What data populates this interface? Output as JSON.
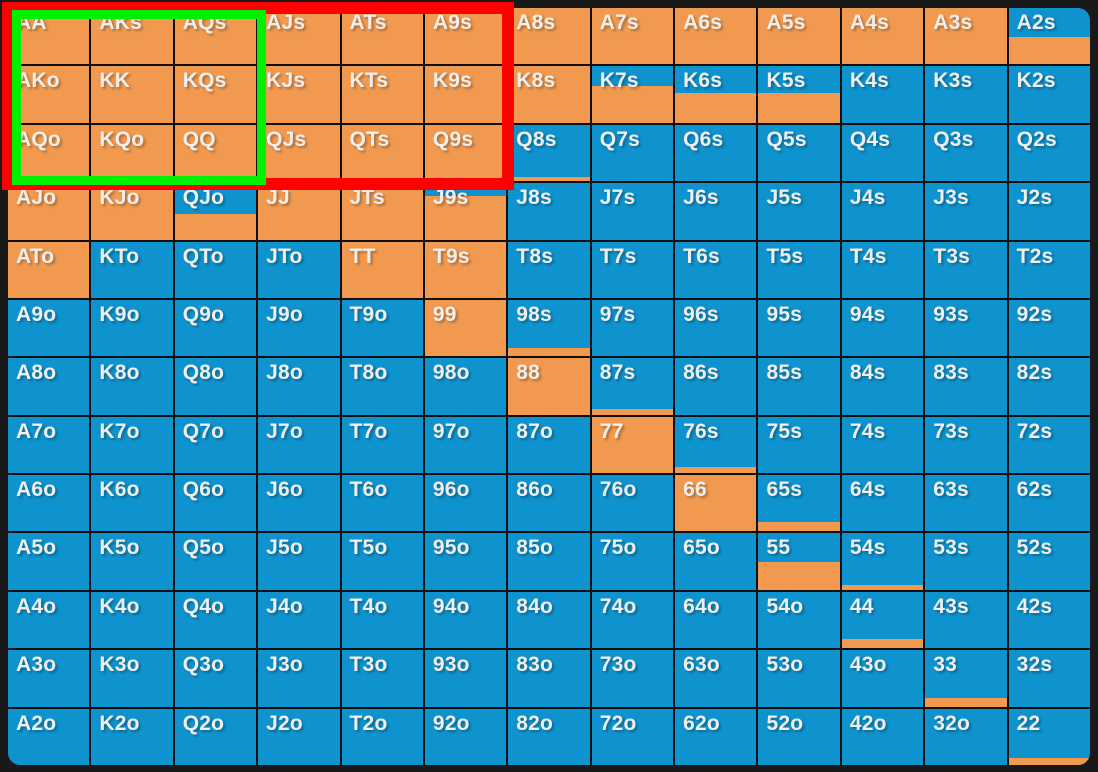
{
  "page": {
    "background_color": "#191919",
    "grid_gap_color": "#0f0f0f"
  },
  "grid": {
    "kind": "poker-hand-range-matrix-13x13",
    "raise_color": "#f0994f",
    "fold_color": "#0e93ce",
    "text_color": "#f1efed",
    "rows": [
      [
        [
          "AA",
          1
        ],
        [
          "AKs",
          1
        ],
        [
          "AQs",
          1
        ],
        [
          "AJs",
          1
        ],
        [
          "ATs",
          1
        ],
        [
          "A9s",
          1
        ],
        [
          "A8s",
          1
        ],
        [
          "A7s",
          1
        ],
        [
          "A6s",
          1
        ],
        [
          "A5s",
          1
        ],
        [
          "A4s",
          1
        ],
        [
          "A3s",
          1
        ],
        [
          "A2s",
          0.48
        ]
      ],
      [
        [
          "AKo",
          1
        ],
        [
          "KK",
          1
        ],
        [
          "KQs",
          1
        ],
        [
          "KJs",
          1
        ],
        [
          "KTs",
          1
        ],
        [
          "K9s",
          1
        ],
        [
          "K8s",
          1
        ],
        [
          "K7s",
          0.65
        ],
        [
          "K6s",
          0.52
        ],
        [
          "K5s",
          0.52
        ],
        [
          "K4s",
          0
        ],
        [
          "K3s",
          0
        ],
        [
          "K2s",
          0
        ]
      ],
      [
        [
          "AQo",
          1
        ],
        [
          "KQo",
          1
        ],
        [
          "QQ",
          1
        ],
        [
          "QJs",
          1
        ],
        [
          "QTs",
          1
        ],
        [
          "Q9s",
          1
        ],
        [
          "Q8s",
          0.08
        ],
        [
          "Q7s",
          0
        ],
        [
          "Q6s",
          0
        ],
        [
          "Q5s",
          0
        ],
        [
          "Q4s",
          0
        ],
        [
          "Q3s",
          0
        ],
        [
          "Q2s",
          0
        ]
      ],
      [
        [
          "AJo",
          1
        ],
        [
          "KJo",
          1
        ],
        [
          "QJo",
          0.45
        ],
        [
          "JJ",
          1
        ],
        [
          "JTs",
          1
        ],
        [
          "J9s",
          0.78
        ],
        [
          "J8s",
          0
        ],
        [
          "J7s",
          0
        ],
        [
          "J6s",
          0
        ],
        [
          "J5s",
          0
        ],
        [
          "J4s",
          0
        ],
        [
          "J3s",
          0
        ],
        [
          "J2s",
          0
        ]
      ],
      [
        [
          "ATo",
          1
        ],
        [
          "KTo",
          0
        ],
        [
          "QTo",
          0
        ],
        [
          "JTo",
          0
        ],
        [
          "TT",
          1
        ],
        [
          "T9s",
          1
        ],
        [
          "T8s",
          0
        ],
        [
          "T7s",
          0
        ],
        [
          "T6s",
          0
        ],
        [
          "T5s",
          0
        ],
        [
          "T4s",
          0
        ],
        [
          "T3s",
          0
        ],
        [
          "T2s",
          0
        ]
      ],
      [
        [
          "A9o",
          0
        ],
        [
          "K9o",
          0
        ],
        [
          "Q9o",
          0
        ],
        [
          "J9o",
          0
        ],
        [
          "T9o",
          0
        ],
        [
          "99",
          1
        ],
        [
          "98s",
          0.14
        ],
        [
          "97s",
          0
        ],
        [
          "96s",
          0
        ],
        [
          "95s",
          0
        ],
        [
          "94s",
          0
        ],
        [
          "93s",
          0
        ],
        [
          "92s",
          0
        ]
      ],
      [
        [
          "A8o",
          0
        ],
        [
          "K8o",
          0
        ],
        [
          "Q8o",
          0
        ],
        [
          "J8o",
          0
        ],
        [
          "T8o",
          0
        ],
        [
          "98o",
          0
        ],
        [
          "88",
          1
        ],
        [
          "87s",
          0.1
        ],
        [
          "86s",
          0
        ],
        [
          "85s",
          0
        ],
        [
          "84s",
          0
        ],
        [
          "83s",
          0
        ],
        [
          "82s",
          0
        ]
      ],
      [
        [
          "A7o",
          0
        ],
        [
          "K7o",
          0
        ],
        [
          "Q7o",
          0
        ],
        [
          "J7o",
          0
        ],
        [
          "T7o",
          0
        ],
        [
          "97o",
          0
        ],
        [
          "87o",
          0
        ],
        [
          "77",
          1
        ],
        [
          "76s",
          0.1
        ],
        [
          "75s",
          0
        ],
        [
          "74s",
          0
        ],
        [
          "73s",
          0
        ],
        [
          "72s",
          0
        ]
      ],
      [
        [
          "A6o",
          0
        ],
        [
          "K6o",
          0
        ],
        [
          "Q6o",
          0
        ],
        [
          "J6o",
          0
        ],
        [
          "T6o",
          0
        ],
        [
          "96o",
          0
        ],
        [
          "86o",
          0
        ],
        [
          "76o",
          0
        ],
        [
          "66",
          1
        ],
        [
          "65s",
          0.16
        ],
        [
          "64s",
          0
        ],
        [
          "63s",
          0
        ],
        [
          "62s",
          0
        ]
      ],
      [
        [
          "A5o",
          0
        ],
        [
          "K5o",
          0
        ],
        [
          "Q5o",
          0
        ],
        [
          "J5o",
          0
        ],
        [
          "T5o",
          0
        ],
        [
          "95o",
          0
        ],
        [
          "85o",
          0
        ],
        [
          "75o",
          0
        ],
        [
          "65o",
          0
        ],
        [
          "55",
          0.5
        ],
        [
          "54s",
          0.08
        ],
        [
          "53s",
          0
        ],
        [
          "52s",
          0
        ]
      ],
      [
        [
          "A4o",
          0
        ],
        [
          "K4o",
          0
        ],
        [
          "Q4o",
          0
        ],
        [
          "J4o",
          0
        ],
        [
          "T4o",
          0
        ],
        [
          "94o",
          0
        ],
        [
          "84o",
          0
        ],
        [
          "74o",
          0
        ],
        [
          "64o",
          0
        ],
        [
          "54o",
          0
        ],
        [
          "44",
          0.16
        ],
        [
          "43s",
          0
        ],
        [
          "42s",
          0
        ]
      ],
      [
        [
          "A3o",
          0
        ],
        [
          "K3o",
          0
        ],
        [
          "Q3o",
          0
        ],
        [
          "J3o",
          0
        ],
        [
          "T3o",
          0
        ],
        [
          "93o",
          0
        ],
        [
          "83o",
          0
        ],
        [
          "73o",
          0
        ],
        [
          "63o",
          0
        ],
        [
          "53o",
          0
        ],
        [
          "43o",
          0
        ],
        [
          "33",
          0.15
        ],
        [
          "32s",
          0
        ]
      ],
      [
        [
          "A2o",
          0
        ],
        [
          "K2o",
          0
        ],
        [
          "Q2o",
          0
        ],
        [
          "J2o",
          0
        ],
        [
          "T2o",
          0
        ],
        [
          "92o",
          0
        ],
        [
          "82o",
          0
        ],
        [
          "72o",
          0
        ],
        [
          "62o",
          0
        ],
        [
          "52o",
          0
        ],
        [
          "42o",
          0
        ],
        [
          "32o",
          0
        ],
        [
          "22",
          0.12
        ]
      ]
    ]
  },
  "annotations": {
    "red_box": {
      "color": "#ff0000",
      "covers": "rows AA-QQ, columns AA-A9s (rows 1-3, cols 1-6)"
    },
    "green_box": {
      "color": "#00f000",
      "covers": "rows AA-QQ, columns AA-AQs (rows 1-3, cols 1-3)"
    }
  }
}
